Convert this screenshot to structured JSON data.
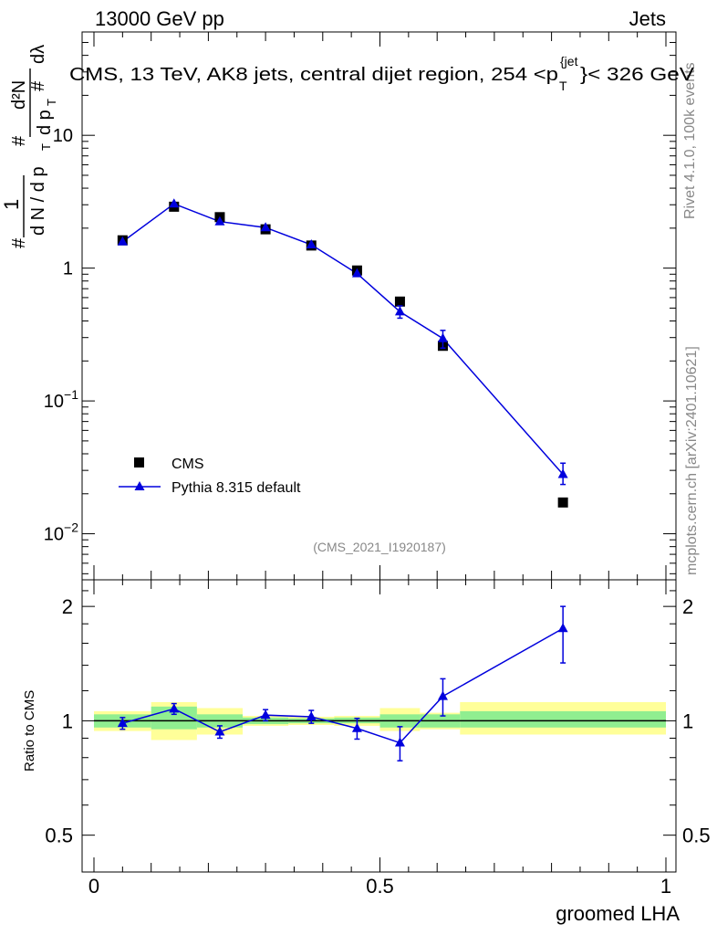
{
  "header": {
    "left": "13000 GeV pp",
    "right": "Jets"
  },
  "side_labels": {
    "rivet": "Rivet 4.1.0,  100k events",
    "mcplots": "mcplots.cern.ch [arXiv:2401.10621]"
  },
  "chart_data": [
    {
      "type": "scatter",
      "panel": "main",
      "title": "CMS, 13 TeV, AK8 jets, central dijet region, 254 <p",
      "title_sub": "T",
      "title_sup": "{jet",
      "title_end": "}< 326 GeV",
      "watermark": "(CMS_2021_I1920187)",
      "xlabel": "groomed LHA",
      "ylabel": "#  1 / dN/dpT  # d²N/dpT dλ",
      "yscale": "log",
      "xlim": [
        -0.02,
        1.0
      ],
      "ylim": [
        0.0045,
        60
      ],
      "legend_position": "lower-left",
      "series": [
        {
          "name": "CMS",
          "marker": "square",
          "color": "#000000",
          "x": [
            0.05,
            0.14,
            0.22,
            0.3,
            0.38,
            0.46,
            0.535,
            0.61,
            0.82
          ],
          "y": [
            1.62,
            2.9,
            2.42,
            1.96,
            1.48,
            0.96,
            0.56,
            0.26,
            0.0172
          ]
        },
        {
          "name": "Pythia 8.315 default",
          "marker": "triangle",
          "line": true,
          "color": "#0000dd",
          "x": [
            0.05,
            0.14,
            0.22,
            0.3,
            0.38,
            0.46,
            0.535,
            0.61,
            0.82
          ],
          "y": [
            1.58,
            3.05,
            2.24,
            2.02,
            1.5,
            0.91,
            0.47,
            0.295,
            0.028
          ],
          "yerr_lo": [
            0.05,
            0.1,
            0.07,
            0.06,
            0.05,
            0.04,
            0.05,
            0.045,
            0.0045
          ],
          "yerr_hi": [
            0.05,
            0.1,
            0.07,
            0.06,
            0.05,
            0.04,
            0.05,
            0.045,
            0.006
          ]
        }
      ],
      "x_ticks": [
        0,
        0.5,
        1
      ],
      "y_ticks": [
        {
          "value": 0.01,
          "base": "10",
          "exp": "−2"
        },
        {
          "value": 0.1,
          "base": "10",
          "exp": "−1"
        },
        {
          "value": 1,
          "base": "1",
          "exp": ""
        },
        {
          "value": 10,
          "base": "10",
          "exp": ""
        }
      ]
    },
    {
      "type": "scatter",
      "panel": "ratio",
      "ylabel": "Ratio to CMS",
      "xlabel": "groomed LHA",
      "yscale": "log",
      "xlim": [
        -0.02,
        1.0
      ],
      "ylim": [
        0.4,
        2.35
      ],
      "x_tick_labels": [
        "0",
        "0.5",
        "1"
      ],
      "y_ticks": [
        {
          "value": 0.5,
          "label": "0.5"
        },
        {
          "value": 1,
          "label": "1"
        },
        {
          "value": 2,
          "label": "2"
        }
      ],
      "bands": [
        {
          "x_lo": 0.0,
          "x_hi": 0.1,
          "g_lo": 0.96,
          "g_hi": 1.04,
          "y_lo": 0.94,
          "y_hi": 1.06
        },
        {
          "x_lo": 0.1,
          "x_hi": 0.18,
          "g_lo": 0.95,
          "g_hi": 1.09,
          "y_lo": 0.89,
          "y_hi": 1.12
        },
        {
          "x_lo": 0.18,
          "x_hi": 0.26,
          "g_lo": 0.96,
          "g_hi": 1.04,
          "y_lo": 0.92,
          "y_hi": 1.08
        },
        {
          "x_lo": 0.26,
          "x_hi": 0.34,
          "g_lo": 0.98,
          "g_hi": 1.02,
          "y_lo": 0.97,
          "y_hi": 1.03
        },
        {
          "x_lo": 0.34,
          "x_hi": 0.42,
          "g_lo": 0.985,
          "g_hi": 1.015,
          "y_lo": 0.975,
          "y_hi": 1.025
        },
        {
          "x_lo": 0.42,
          "x_hi": 0.5,
          "g_lo": 0.985,
          "g_hi": 1.02,
          "y_lo": 0.97,
          "y_hi": 1.03
        },
        {
          "x_lo": 0.5,
          "x_hi": 0.57,
          "g_lo": 0.96,
          "g_hi": 1.04,
          "y_lo": 0.94,
          "y_hi": 1.08
        },
        {
          "x_lo": 0.57,
          "x_hi": 0.64,
          "g_lo": 0.96,
          "g_hi": 1.04,
          "y_lo": 0.95,
          "y_hi": 1.05
        },
        {
          "x_lo": 0.64,
          "x_hi": 1.0,
          "g_lo": 0.96,
          "g_hi": 1.06,
          "y_lo": 0.92,
          "y_hi": 1.12
        }
      ],
      "series": [
        {
          "name": "Pythia 8.315 default / CMS",
          "color": "#0000dd",
          "x": [
            0.05,
            0.14,
            0.22,
            0.3,
            0.38,
            0.46,
            0.535,
            0.61,
            0.82
          ],
          "y": [
            0.985,
            1.075,
            0.935,
            1.035,
            1.025,
            0.955,
            0.875,
            1.16,
            1.75
          ],
          "yerr_lo": [
            0.035,
            0.035,
            0.035,
            0.035,
            0.04,
            0.06,
            0.09,
            0.13,
            0.33
          ],
          "yerr_hi": [
            0.035,
            0.035,
            0.035,
            0.035,
            0.04,
            0.06,
            0.09,
            0.13,
            0.25
          ]
        }
      ]
    }
  ]
}
